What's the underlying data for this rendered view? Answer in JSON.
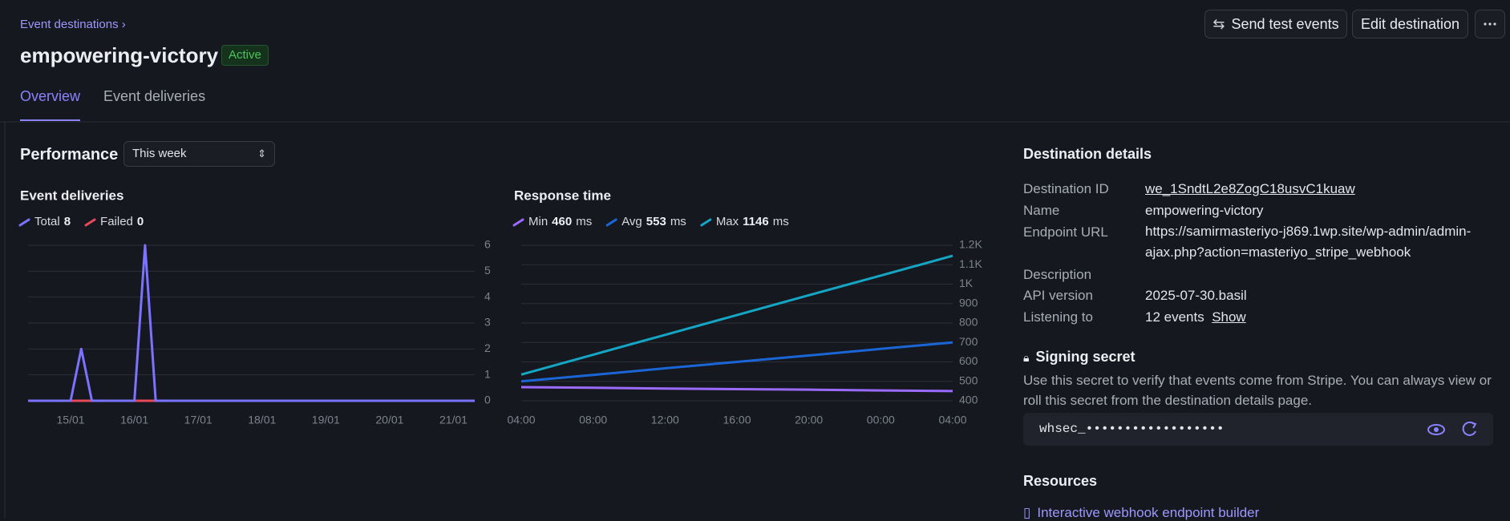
{
  "breadcrumb": "Event destinations",
  "header": {
    "title": "empowering-victory",
    "status": "Active",
    "actions": [
      "Send test events",
      "Edit destination"
    ]
  },
  "tabs": [
    "Overview",
    "Event deliveries"
  ],
  "performance": {
    "title": "Performance",
    "period": "This week"
  },
  "chart_data": [
    {
      "type": "line",
      "title": "Event deliveries",
      "categories": [
        null,
        null,
        null,
        null,
        "15/01",
        null,
        null,
        null,
        null,
        null,
        "16/01",
        null,
        null,
        null,
        null,
        null,
        "17/01",
        null,
        null,
        null,
        null,
        null,
        "18/01",
        null,
        null,
        null,
        null,
        null,
        "19/01",
        null,
        null,
        null,
        null,
        null,
        "20/01",
        null,
        null,
        null,
        null,
        null,
        "21/01",
        null,
        null
      ],
      "series": [
        {
          "name": "Total",
          "summary": 8,
          "color": "#7b73ff",
          "values": [
            0,
            0,
            0,
            0,
            0,
            2,
            0,
            0,
            0,
            0,
            0,
            6,
            0,
            0,
            0,
            0,
            0,
            0,
            0,
            0,
            0,
            0,
            0,
            0,
            0,
            0,
            0,
            0,
            0,
            0,
            0,
            0,
            0,
            0,
            0,
            0,
            0,
            0,
            0,
            0,
            0,
            0,
            0
          ]
        },
        {
          "name": "Failed",
          "summary": 0,
          "color": "#e8495a",
          "values": [
            0,
            0,
            0,
            0,
            0,
            0,
            0,
            0,
            0,
            0,
            0,
            0,
            0,
            0,
            0,
            0,
            0,
            0,
            0,
            0,
            0,
            0,
            0,
            0,
            0,
            0,
            0,
            0,
            0,
            0,
            0,
            0,
            0,
            0,
            0,
            0,
            0,
            0,
            0,
            0,
            0,
            0,
            0
          ]
        }
      ],
      "ylim": [
        0,
        6
      ],
      "yticks": [
        0,
        1,
        2,
        3,
        4,
        5,
        6
      ],
      "grid": true
    },
    {
      "type": "line",
      "title": "Response time",
      "unit": "ms",
      "categories": [
        "04:00",
        "08:00",
        "12:00",
        "16:00",
        "20:00",
        "00:00",
        "04:00"
      ],
      "series": [
        {
          "name": "Min",
          "summary": 460,
          "color": "#9b6bff",
          "values": [
            470,
            467,
            463,
            460,
            457,
            453,
            450
          ]
        },
        {
          "name": "Avg",
          "summary": 553,
          "color": "#1a66d6",
          "values": [
            500,
            533,
            567,
            600,
            633,
            667,
            700
          ]
        },
        {
          "name": "Max",
          "summary": 1146,
          "color": "#14a6c4",
          "values": [
            535,
            637,
            739,
            841,
            943,
            1044,
            1146
          ]
        }
      ],
      "ylim": [
        400,
        1200
      ],
      "yticks": [
        400,
        500,
        600,
        700,
        800,
        900,
        {
          "value": 1000,
          "label": "1K"
        },
        {
          "value": 1100,
          "label": "1.1K"
        },
        {
          "value": 1200,
          "label": "1.2K"
        }
      ],
      "grid": true
    }
  ],
  "details": {
    "title": "Destination details",
    "rows": [
      {
        "label": "Destination ID",
        "value": "we_1SndtL2e8ZogC18usvC1kuaw"
      },
      {
        "label": "Name",
        "value": "empowering-victory"
      },
      {
        "label": "Endpoint URL",
        "value": "https://samirmasteriyo-j869.1wp.site/wp-admin/admin-ajax.php?action=masteriyo_stripe_webhook"
      },
      {
        "label": "Description"
      },
      {
        "label": "API version",
        "value": "2025-07-30.basil"
      },
      {
        "label": "Listening to",
        "value": "12 events",
        "link": "Show"
      }
    ]
  },
  "signing_secret": {
    "title": "Signing secret",
    "description": "Use this secret to verify that events come from Stripe. You can always view or roll this secret from the destination details page.",
    "value": "whsec_••••••••••••••••••"
  },
  "resources": {
    "title": "Resources",
    "links": [
      "Interactive webhook endpoint builder"
    ]
  }
}
